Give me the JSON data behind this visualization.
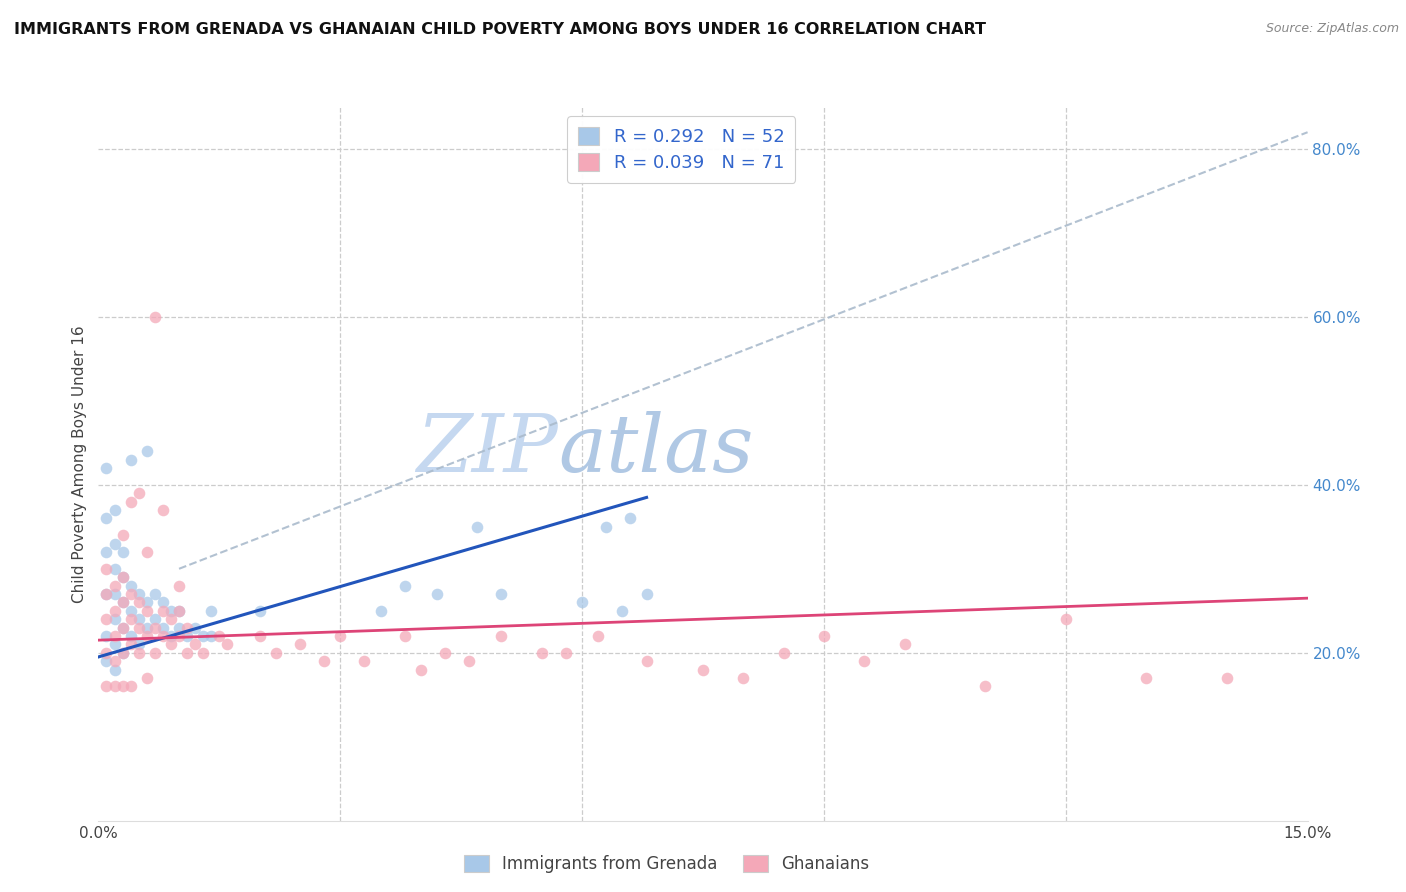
{
  "title": "IMMIGRANTS FROM GRENADA VS GHANAIAN CHILD POVERTY AMONG BOYS UNDER 16 CORRELATION CHART",
  "source": "Source: ZipAtlas.com",
  "ylabel": "Child Poverty Among Boys Under 16",
  "xlim": [
    0.0,
    0.15
  ],
  "ylim": [
    0.0,
    0.85
  ],
  "xtick_positions": [
    0.0,
    0.03,
    0.06,
    0.09,
    0.12,
    0.15
  ],
  "xticklabels": [
    "0.0%",
    "",
    "",
    "",
    "",
    "15.0%"
  ],
  "ytick_right_positions": [
    0.2,
    0.4,
    0.6,
    0.8
  ],
  "ytick_right_labels": [
    "20.0%",
    "40.0%",
    "60.0%",
    "80.0%"
  ],
  "blue_color": "#a8c8e8",
  "pink_color": "#f4a8b8",
  "blue_line_color": "#2255bb",
  "pink_line_color": "#dd4477",
  "dashed_line_color": "#aabbcc",
  "watermark_zip_color": "#c8d8ee",
  "watermark_atlas_color": "#b8cce0",
  "blue_scatter_x": [
    0.001,
    0.001,
    0.001,
    0.001,
    0.001,
    0.001,
    0.002,
    0.002,
    0.002,
    0.002,
    0.002,
    0.002,
    0.002,
    0.003,
    0.003,
    0.003,
    0.003,
    0.003,
    0.004,
    0.004,
    0.004,
    0.004,
    0.005,
    0.005,
    0.005,
    0.006,
    0.006,
    0.006,
    0.007,
    0.007,
    0.008,
    0.008,
    0.009,
    0.009,
    0.01,
    0.01,
    0.011,
    0.012,
    0.013,
    0.014,
    0.014,
    0.02,
    0.035,
    0.038,
    0.042,
    0.047,
    0.05,
    0.06,
    0.063,
    0.065,
    0.066,
    0.068
  ],
  "blue_scatter_y": [
    0.19,
    0.22,
    0.27,
    0.32,
    0.36,
    0.42,
    0.18,
    0.21,
    0.24,
    0.27,
    0.3,
    0.33,
    0.37,
    0.2,
    0.23,
    0.26,
    0.29,
    0.32,
    0.22,
    0.25,
    0.28,
    0.43,
    0.21,
    0.24,
    0.27,
    0.23,
    0.26,
    0.44,
    0.24,
    0.27,
    0.23,
    0.26,
    0.22,
    0.25,
    0.23,
    0.25,
    0.22,
    0.23,
    0.22,
    0.22,
    0.25,
    0.25,
    0.25,
    0.28,
    0.27,
    0.35,
    0.27,
    0.26,
    0.35,
    0.25,
    0.36,
    0.27
  ],
  "pink_scatter_x": [
    0.001,
    0.001,
    0.001,
    0.001,
    0.001,
    0.002,
    0.002,
    0.002,
    0.002,
    0.002,
    0.003,
    0.003,
    0.003,
    0.003,
    0.003,
    0.003,
    0.004,
    0.004,
    0.004,
    0.004,
    0.004,
    0.005,
    0.005,
    0.005,
    0.005,
    0.006,
    0.006,
    0.006,
    0.006,
    0.007,
    0.007,
    0.007,
    0.008,
    0.008,
    0.008,
    0.009,
    0.009,
    0.01,
    0.01,
    0.01,
    0.011,
    0.011,
    0.012,
    0.013,
    0.015,
    0.016,
    0.02,
    0.022,
    0.025,
    0.028,
    0.03,
    0.033,
    0.038,
    0.04,
    0.043,
    0.046,
    0.05,
    0.055,
    0.058,
    0.062,
    0.068,
    0.075,
    0.08,
    0.085,
    0.09,
    0.095,
    0.1,
    0.11,
    0.12,
    0.13,
    0.14
  ],
  "pink_scatter_y": [
    0.24,
    0.27,
    0.3,
    0.2,
    0.16,
    0.22,
    0.25,
    0.28,
    0.19,
    0.16,
    0.2,
    0.23,
    0.26,
    0.29,
    0.34,
    0.16,
    0.21,
    0.24,
    0.27,
    0.38,
    0.16,
    0.2,
    0.23,
    0.26,
    0.39,
    0.22,
    0.25,
    0.32,
    0.17,
    0.2,
    0.23,
    0.6,
    0.22,
    0.25,
    0.37,
    0.21,
    0.24,
    0.22,
    0.25,
    0.28,
    0.2,
    0.23,
    0.21,
    0.2,
    0.22,
    0.21,
    0.22,
    0.2,
    0.21,
    0.19,
    0.22,
    0.19,
    0.22,
    0.18,
    0.2,
    0.19,
    0.22,
    0.2,
    0.2,
    0.22,
    0.19,
    0.18,
    0.17,
    0.2,
    0.22,
    0.19,
    0.21,
    0.16,
    0.24,
    0.17,
    0.17
  ],
  "blue_line_x0": 0.0,
  "blue_line_x1": 0.068,
  "blue_line_y0": 0.195,
  "blue_line_y1": 0.385,
  "pink_line_x0": 0.0,
  "pink_line_x1": 0.15,
  "pink_line_y0": 0.215,
  "pink_line_y1": 0.265,
  "dash_line_x0": 0.01,
  "dash_line_x1": 0.15,
  "dash_line_y0": 0.3,
  "dash_line_y1": 0.82
}
